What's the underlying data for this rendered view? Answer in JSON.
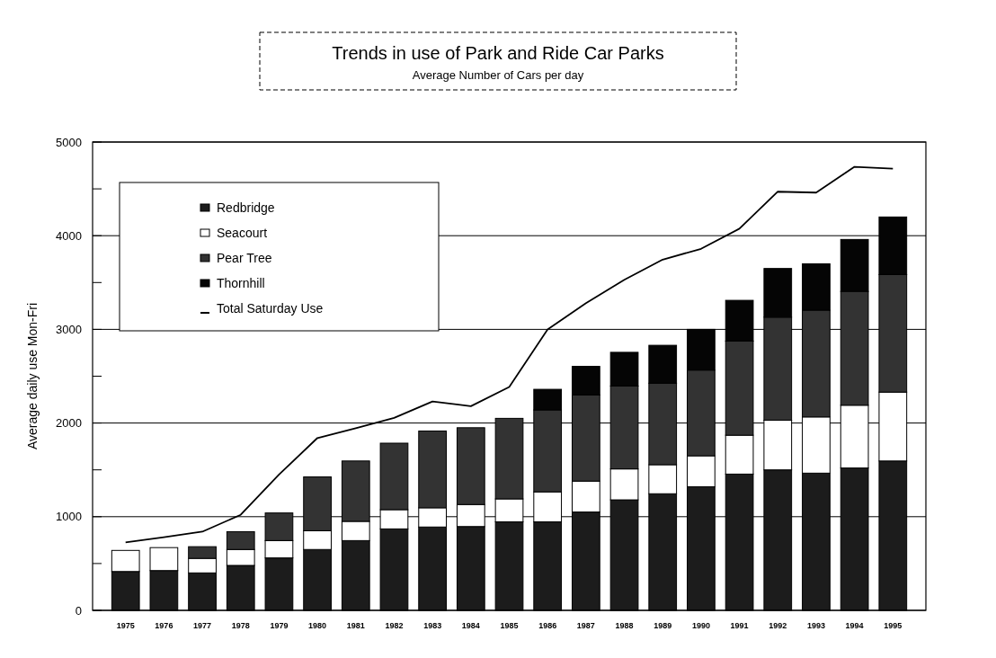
{
  "chart_data": {
    "type": "bar",
    "title": "Trends in use of Park and Ride Car Parks",
    "subtitle": "Average Number of Cars per day",
    "ylabel": "Average daily use Mon-Fri",
    "categories": [
      "1975",
      "1976",
      "1977",
      "1978",
      "1979",
      "1980",
      "1981",
      "1982",
      "1983",
      "1984",
      "1985",
      "1986",
      "1987",
      "1988",
      "1989",
      "1990",
      "1991",
      "1992",
      "1993",
      "1994",
      "1995"
    ],
    "stacked": true,
    "series": [
      {
        "name": "Redbridge",
        "color": "#1c1c1c",
        "values": [
          415,
          425,
          400,
          480,
          560,
          650,
          745,
          870,
          890,
          895,
          945,
          945,
          1050,
          1180,
          1245,
          1320,
          1455,
          1500,
          1465,
          1520,
          1595
        ]
      },
      {
        "name": "Seacourt",
        "color": "#ffffff",
        "values": [
          225,
          245,
          155,
          170,
          185,
          200,
          205,
          205,
          205,
          235,
          245,
          320,
          330,
          330,
          310,
          330,
          415,
          530,
          600,
          670,
          735
        ]
      },
      {
        "name": "Pear Tree",
        "color": "#333333",
        "values": [
          0,
          0,
          125,
          190,
          295,
          575,
          645,
          710,
          820,
          820,
          860,
          875,
          920,
          885,
          870,
          915,
          1005,
          1100,
          1140,
          1215,
          1255
        ]
      },
      {
        "name": "Thornhill",
        "color": "#050505",
        "values": [
          0,
          0,
          0,
          0,
          0,
          0,
          0,
          0,
          0,
          0,
          0,
          220,
          305,
          360,
          405,
          435,
          435,
          520,
          495,
          555,
          615
        ]
      },
      {
        "name": "Total Saturday Use",
        "type": "line",
        "color": "#000000",
        "values": [
          726,
          780,
          840,
          1020,
          1450,
          1840,
          1945,
          2055,
          2230,
          2180,
          2385,
          3000,
          3280,
          3530,
          3745,
          3860,
          4075,
          4470,
          4460,
          4735,
          4715
        ]
      }
    ],
    "ylim": [
      0,
      5000
    ],
    "yticks": [
      0,
      {
        "value": 500,
        "label": null
      },
      1000,
      {
        "value": 1500,
        "label": null
      },
      2000,
      {
        "value": 2500,
        "label": null
      },
      3000,
      {
        "value": 3500,
        "label": null
      },
      4000,
      {
        "value": 4500,
        "label": null
      },
      5000
    ],
    "grid": "y",
    "legend": "top left"
  }
}
